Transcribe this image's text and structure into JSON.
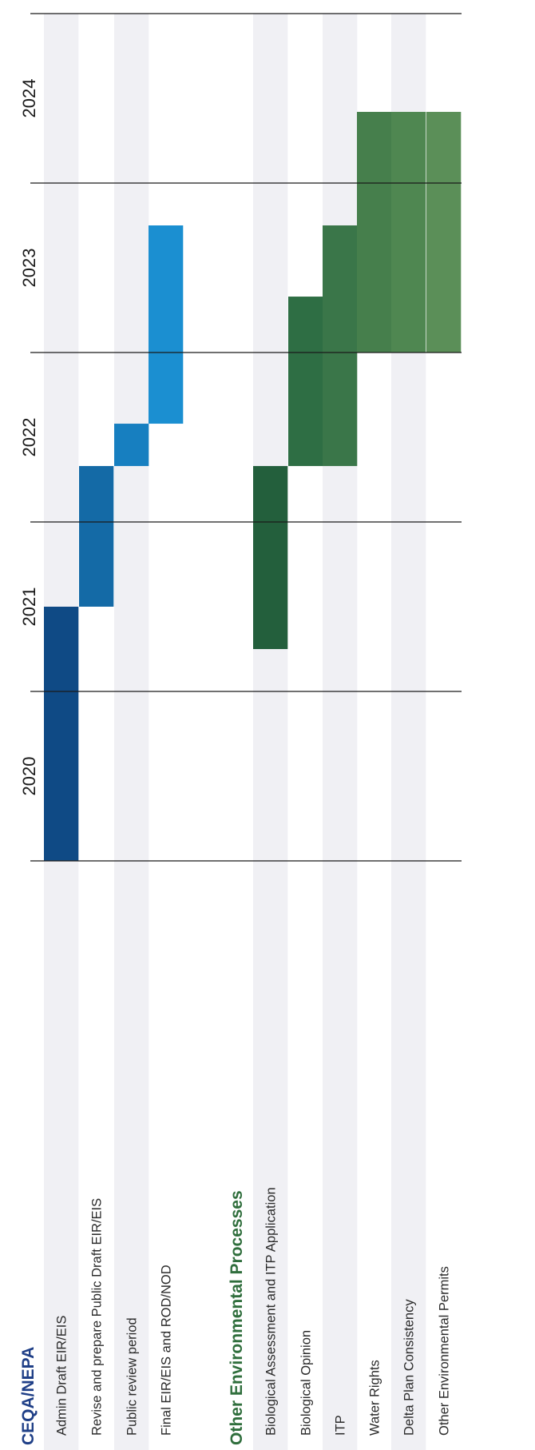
{
  "chart_data": {
    "type": "gantt",
    "orientation": "rotated-90-ccw",
    "years": [
      "2020",
      "2021",
      "2022",
      "2023",
      "2024"
    ],
    "time_range": [
      2020.0,
      2025.0
    ],
    "sections": [
      {
        "title": "CEQA/NEPA",
        "color": "#1f3f87",
        "rows": [
          {
            "label": "Admin Draft EIR/EIS",
            "start": 2020.0,
            "end": 2021.5,
            "color": "#0f4a85"
          },
          {
            "label": "Revise and prepare Public Draft EIR/EIS",
            "start": 2021.5,
            "end": 2022.33,
            "color": "#146aa6"
          },
          {
            "label": "Public review period",
            "start": 2022.33,
            "end": 2022.58,
            "color": "#177fc0"
          },
          {
            "label": "Final EIR/EIS and ROD/NOD",
            "start": 2022.58,
            "end": 2023.75,
            "color": "#1b8fd1"
          }
        ]
      },
      {
        "title": "Other Environmental Processes",
        "color": "#2f6e3c",
        "rows": [
          {
            "label": "Biological Assessment and ITP Application",
            "start": 2021.25,
            "end": 2022.33,
            "color": "#235f3c"
          },
          {
            "label": "Biological Opinion",
            "start": 2022.33,
            "end": 2023.33,
            "color": "#2e6e44"
          },
          {
            "label": "ITP",
            "start": 2022.33,
            "end": 2023.75,
            "color": "#3a7649"
          },
          {
            "label": "Water Rights",
            "start": 2023.0,
            "end": 2024.42,
            "color": "#467f4c"
          },
          {
            "label": "Delta Plan Consistency",
            "start": 2023.0,
            "end": 2024.42,
            "color": "#4f8751"
          },
          {
            "label": "Other Environmental Permits",
            "start": 2023.0,
            "end": 2024.42,
            "color": "#5b8f58"
          }
        ]
      }
    ],
    "stripe_color": "#f0f0f4",
    "gridline_color": "#1a1a1a"
  }
}
